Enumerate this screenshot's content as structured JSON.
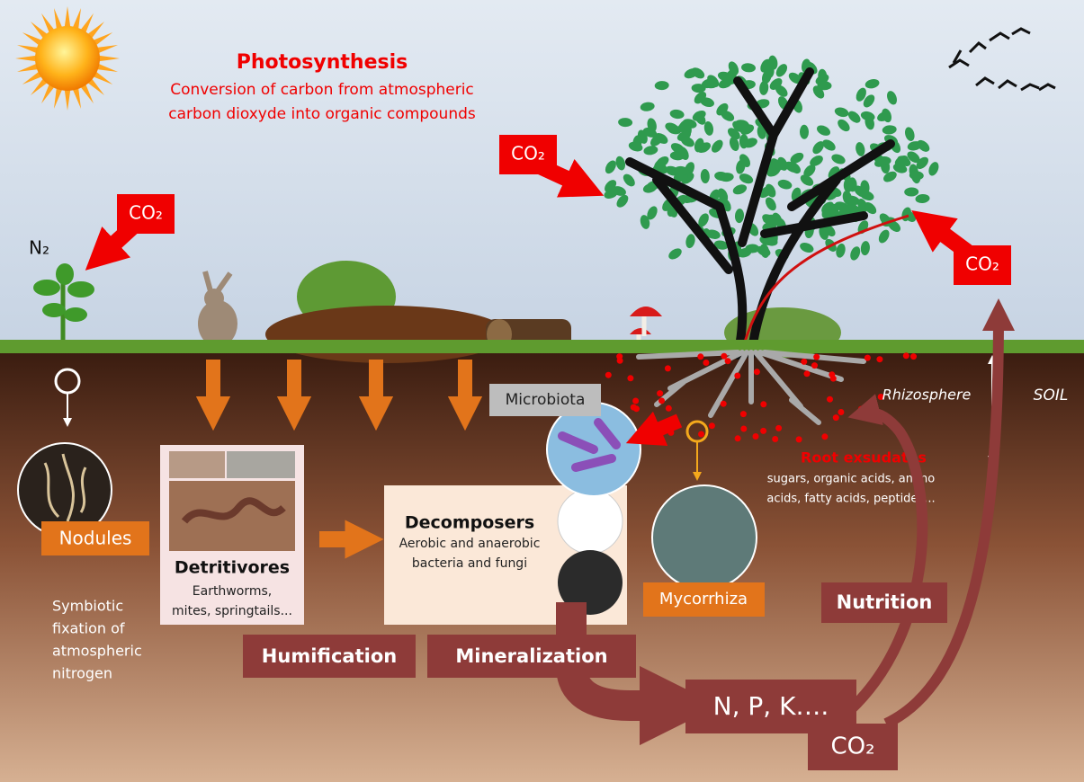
{
  "photosynthesis": {
    "title": "Photosynthesis",
    "lines": [
      "Conversion of carbon from atmospheric",
      "carbon dioxyde into organic compounds"
    ]
  },
  "gases": {
    "co2_tree_left": "CO₂",
    "co2_plant": "CO₂",
    "co2_tree_right": "CO₂",
    "n2": "N₂"
  },
  "soil": {
    "soil_label": "SOIL",
    "rhizosphere": "Rhizosphere",
    "microbiota": "Microbiota",
    "root_exsudates": {
      "title": "Root exsudates",
      "lines": [
        "sugars, organic acids, amino",
        "acids, fatty acids, peptides..."
      ]
    },
    "nodules": {
      "title": "Nodules",
      "lines": [
        "Symbiotic",
        "fixation of",
        "atmospheric",
        "nitrogen"
      ]
    },
    "detritivores": {
      "title": "Detritivores",
      "lines": [
        "Earthworms,",
        "mites, springtails..."
      ]
    },
    "decomposers": {
      "title": "Decomposers",
      "lines": [
        "Aerobic and anaerobic",
        "bacteria and fungi"
      ]
    },
    "mycorrhiza": "Mycorrhiza"
  },
  "processes": {
    "humification": "Humification",
    "mineralization": "Mineralization",
    "nutrition": "Nutrition"
  },
  "products": {
    "nutrients": "N, P, K….",
    "co2": "CO₂"
  }
}
